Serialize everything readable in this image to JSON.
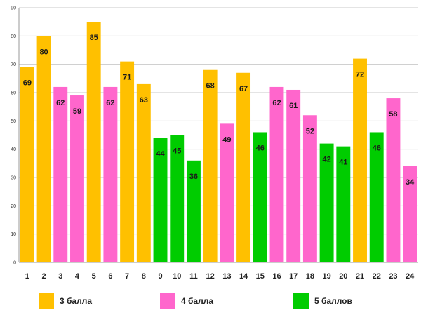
{
  "chart_data": {
    "type": "bar",
    "title": "",
    "xlabel": "",
    "ylabel": "",
    "ylim": [
      0,
      90
    ],
    "yticks": [
      0,
      10,
      20,
      30,
      40,
      50,
      60,
      70,
      80,
      90
    ],
    "grid": true,
    "categories": [
      "1",
      "2",
      "3",
      "4",
      "5",
      "6",
      "7",
      "8",
      "9",
      "10",
      "11",
      "12",
      "13",
      "14",
      "15",
      "16",
      "17",
      "18",
      "19",
      "20",
      "21",
      "22",
      "23",
      "24"
    ],
    "values": [
      69,
      80,
      62,
      59,
      85,
      62,
      71,
      63,
      44,
      45,
      36,
      68,
      49,
      67,
      46,
      62,
      61,
      52,
      42,
      41,
      72,
      46,
      58,
      34
    ],
    "groups": [
      "3",
      "3",
      "4",
      "4",
      "3",
      "4",
      "3",
      "3",
      "5",
      "5",
      "5",
      "3",
      "4",
      "3",
      "5",
      "4",
      "4",
      "4",
      "5",
      "5",
      "3",
      "5",
      "4",
      "4"
    ],
    "legend": [
      {
        "key": "3",
        "label": "3 балла",
        "color": "#ffc000"
      },
      {
        "key": "4",
        "label": "4 балла",
        "color": "#ff66cc"
      },
      {
        "key": "5",
        "label": "5 баллов",
        "color": "#00cc00"
      }
    ],
    "legend_position": "bottom"
  }
}
